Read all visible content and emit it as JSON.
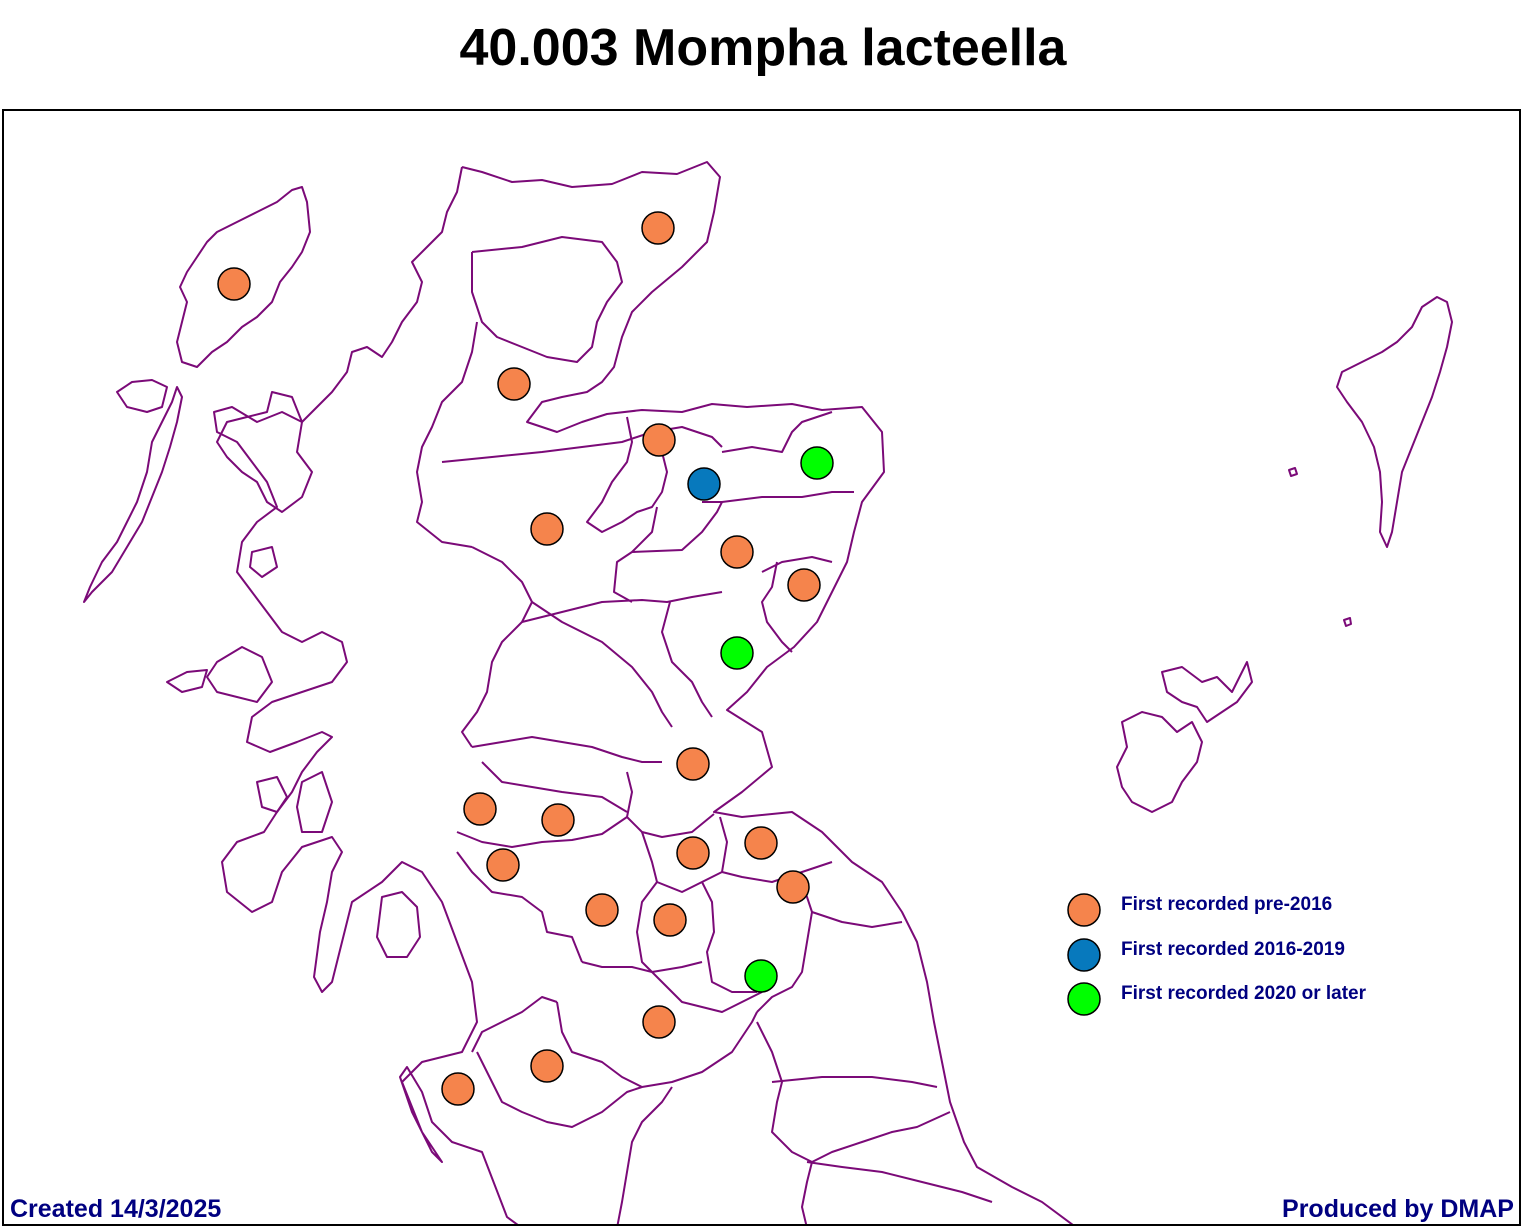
{
  "title": "40.003 Mompha lacteella",
  "colors": {
    "pre_2016": "#F5844C",
    "y2016_2019": "#0779BD",
    "y2020_later": "#00FF00",
    "boundary": "#7B0A78",
    "text": "#000080"
  },
  "legend": [
    {
      "label": "First recorded pre-2016",
      "category": "pre_2016"
    },
    {
      "label": "First recorded 2016-2019",
      "category": "y2016_2019"
    },
    {
      "label": "First recorded 2020 or later",
      "category": "y2020_later"
    }
  ],
  "records": [
    {
      "category": "pre_2016"
    },
    {
      "category": "pre_2016"
    },
    {
      "category": "pre_2016"
    },
    {
      "category": "pre_2016"
    },
    {
      "category": "y2016_2019"
    },
    {
      "category": "y2020_later"
    },
    {
      "category": "pre_2016"
    },
    {
      "category": "pre_2016"
    },
    {
      "category": "pre_2016"
    },
    {
      "category": "y2020_later"
    },
    {
      "category": "pre_2016"
    },
    {
      "category": "pre_2016"
    },
    {
      "category": "pre_2016"
    },
    {
      "category": "pre_2016"
    },
    {
      "category": "pre_2016"
    },
    {
      "category": "pre_2016"
    },
    {
      "category": "pre_2016"
    },
    {
      "category": "pre_2016"
    },
    {
      "category": "pre_2016"
    },
    {
      "category": "y2020_later"
    },
    {
      "category": "pre_2016"
    },
    {
      "category": "pre_2016"
    },
    {
      "category": "pre_2016"
    }
  ],
  "footer": {
    "created": "Created 14/3/2025",
    "produced": "Produced by DMAP"
  }
}
